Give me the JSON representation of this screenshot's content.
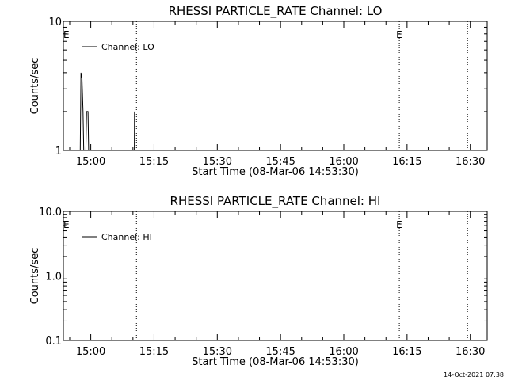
{
  "chart_data": [
    {
      "type": "line",
      "title": "RHESSI PARTICLE_RATE Channel: LO",
      "xlabel": "Start Time (08-Mar-06 14:53:30)",
      "ylabel": "Counts/sec",
      "yscale": "log",
      "ylim": [
        1,
        10
      ],
      "xlim": [
        "14:53:30",
        "16:34:00"
      ],
      "xticks": [
        "15:00",
        "15:15",
        "15:30",
        "15:45",
        "16:00",
        "16:15",
        "16:30"
      ],
      "yticks": [
        "1",
        "10"
      ],
      "grid": false,
      "legend": {
        "position": "top-left",
        "entries": [
          "Channel: LO"
        ]
      },
      "markers": [
        {
          "time": "14:54:15",
          "label": "E"
        },
        {
          "time": "16:13:10",
          "label": "E"
        }
      ],
      "vlines": [
        "15:10:50",
        "16:13:10",
        "16:29:20"
      ],
      "series": [
        {
          "name": "Channel: LO",
          "points": [
            [
              "14:57:30",
              1.0
            ],
            [
              "14:57:40",
              4.0
            ],
            [
              "14:57:55",
              3.6
            ],
            [
              "14:58:10",
              2.0
            ],
            [
              "14:58:20",
              1.0
            ],
            [
              "14:58:50",
              1.0
            ],
            [
              "14:59:00",
              2.0
            ],
            [
              "14:59:20",
              2.0
            ],
            [
              "14:59:30",
              1.0
            ],
            [
              "15:10:20",
              1.0
            ],
            [
              "15:10:22",
              2.0
            ],
            [
              "15:10:30",
              1.0
            ]
          ]
        }
      ]
    },
    {
      "type": "line",
      "title": "RHESSI PARTICLE_RATE Channel: HI",
      "xlabel": "Start Time (08-Mar-06 14:53:30)",
      "ylabel": "Counts/sec",
      "yscale": "log",
      "ylim": [
        0.1,
        10
      ],
      "xlim": [
        "14:53:30",
        "16:34:00"
      ],
      "xticks": [
        "15:00",
        "15:15",
        "15:30",
        "15:45",
        "16:00",
        "16:15",
        "16:30"
      ],
      "yticks": [
        "10.0",
        "1.0",
        "0.1"
      ],
      "grid": false,
      "legend": {
        "position": "top-left",
        "entries": [
          "Channel: HI"
        ]
      },
      "markers": [
        {
          "time": "14:54:15",
          "label": "E"
        },
        {
          "time": "16:13:10",
          "label": "E"
        }
      ],
      "vlines": [
        "15:10:50",
        "16:13:10",
        "16:29:20"
      ],
      "series": [
        {
          "name": "Channel: HI",
          "points": []
        }
      ]
    }
  ],
  "footer": {
    "timestamp": "14-Oct-2021 07:38"
  }
}
